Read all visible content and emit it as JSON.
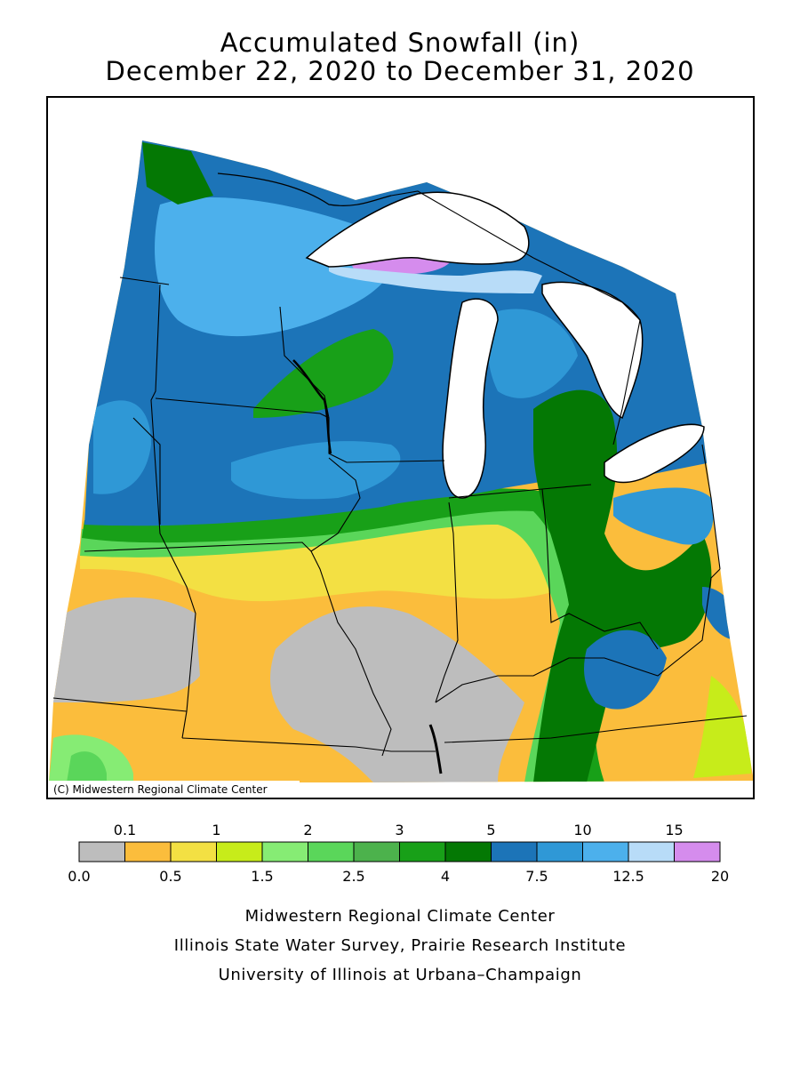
{
  "title": {
    "line1": "Accumulated Snowfall (in)",
    "line2": "December 22, 2020 to December 31, 2020"
  },
  "map": {
    "watermark": "(C) Midwestern Regional Climate Center",
    "colors": {
      "background": "#ffffff",
      "lake": "#ffffff",
      "border": "#000000"
    }
  },
  "legend": {
    "bins": [
      {
        "color": "#bdbdbd"
      },
      {
        "color": "#fbbd3c"
      },
      {
        "color": "#f3e043"
      },
      {
        "color": "#c7ec1a"
      },
      {
        "color": "#86ec74"
      },
      {
        "color": "#5ad65a"
      },
      {
        "color": "#4cb24c"
      },
      {
        "color": "#18a018"
      },
      {
        "color": "#047804"
      },
      {
        "color": "#1c74b8"
      },
      {
        "color": "#2f98d6"
      },
      {
        "color": "#4cb0ec"
      },
      {
        "color": "#b8dcf8"
      },
      {
        "color": "#d58ced"
      }
    ],
    "top_labels": [
      "0.1",
      "1",
      "2",
      "3",
      "5",
      "10",
      "15"
    ],
    "bottom_labels": [
      "0.0",
      "0.5",
      "1.5",
      "2.5",
      "4",
      "7.5",
      "12.5",
      "20"
    ]
  },
  "credits": {
    "line1": "Midwestern Regional Climate Center",
    "line2": "Illinois State Water Survey, Prairie Research Institute",
    "line3": "University of Illinois at Urbana–Champaign"
  }
}
